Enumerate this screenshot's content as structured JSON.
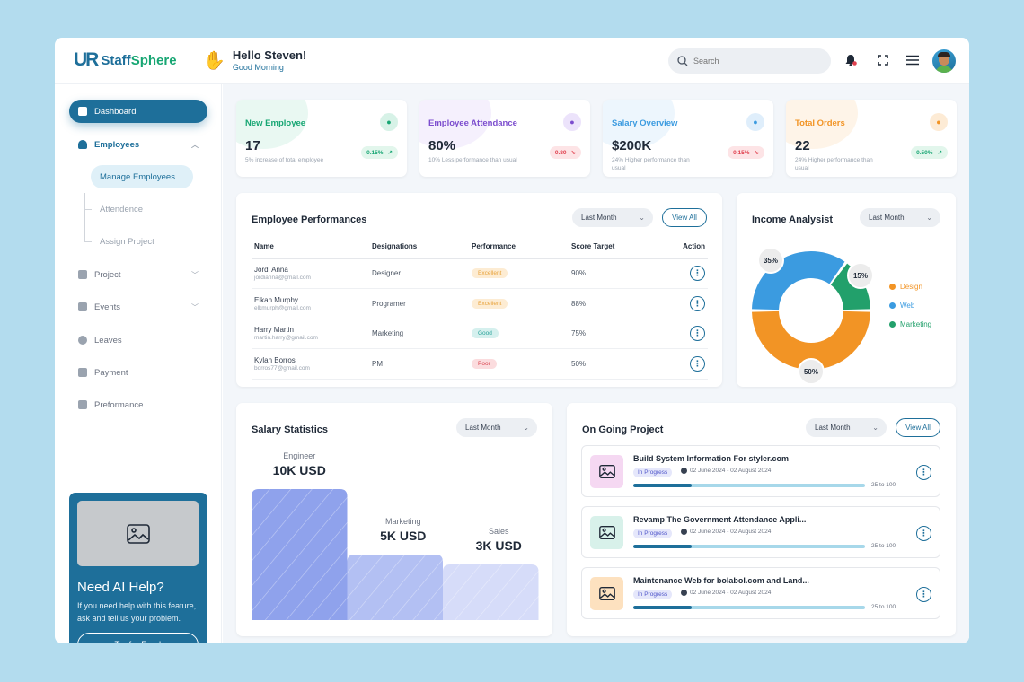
{
  "app": {
    "logo_mark": "UR",
    "logo_name_a": "Staff",
    "logo_name_b": "Sphere",
    "greeting_title": "Hello Steven!",
    "greeting_sub": "Good Morning",
    "search_placeholder": "Search",
    "icons": [
      "bell-icon",
      "fullscreen-icon",
      "menu-icon"
    ]
  },
  "sidebar": {
    "dashboard": "Dashboard",
    "employees": "Employees",
    "sub_items": [
      "Manage Employees",
      "Attendence",
      "Assign Project"
    ],
    "project": "Project",
    "events": "Events",
    "leaves": "Leaves",
    "payment": "Payment",
    "performance": "Preformance",
    "ai_card": {
      "title": "Need AI Help?",
      "text": "If you need help with this feature, ask and tell us your problem.",
      "button": "Try for Free!"
    }
  },
  "stats": [
    {
      "title": "New Employee",
      "value": "17",
      "note": "5% increase of total employee",
      "badge": "0.15%",
      "badge_arrow": "↗",
      "color": "#17a673",
      "tint": "#d7f2e7",
      "badge_bg": "#e2f6ec",
      "badge_color": "#17a673",
      "icon": "users-icon"
    },
    {
      "title": "Employee Attendance",
      "value": "80%",
      "note": "10% Less performance than usual",
      "badge": "0.80",
      "badge_arrow": "↘",
      "color": "#7c4dce",
      "tint": "#ece3fb",
      "badge_bg": "#fde4e6",
      "badge_color": "#e0414f",
      "icon": "megaphone-icon"
    },
    {
      "title": "Salary Overview",
      "value": "$200K",
      "note": "24% Higher performance than usual",
      "badge": "0.15%",
      "badge_arrow": "↘",
      "color": "#3b9be0",
      "tint": "#dfeefb",
      "badge_bg": "#fde4e6",
      "badge_color": "#e0414f",
      "icon": "cash-icon"
    },
    {
      "title": "Total Orders",
      "value": "22",
      "note": "24% Higher performance than usual",
      "badge": "0.50%",
      "badge_arrow": "↗",
      "color": "#f29425",
      "tint": "#fdebd5",
      "badge_bg": "#e2f6ec",
      "badge_color": "#17a673",
      "icon": "box-icon"
    }
  ],
  "performances": {
    "title": "Employee Performances",
    "filter": "Last Month",
    "view_all": "View All",
    "columns": [
      "Name",
      "Designations",
      "Performance",
      "Score Target",
      "Action"
    ],
    "rows": [
      {
        "name": "Jordi Anna",
        "email": "jordianna@gmail.com",
        "designation": "Designer",
        "performance": "Excellent",
        "perf_bg": "#fdecd3",
        "perf_color": "#e8a33c",
        "score": "90%"
      },
      {
        "name": "Elkan Murphy",
        "email": "elkmurph@gmail.com",
        "designation": "Programer",
        "performance": "Excellent",
        "perf_bg": "#fdecd3",
        "perf_color": "#e8a33c",
        "score": "88%"
      },
      {
        "name": "Harry Martin",
        "email": "martin.harry@gmail.com",
        "designation": "Marketing",
        "performance": "Good",
        "perf_bg": "#d5f0ee",
        "perf_color": "#2aa39a",
        "score": "75%"
      },
      {
        "name": "Kylan Borros",
        "email": "borros77@gmail.com",
        "designation": "PM",
        "performance": "Poor",
        "perf_bg": "#fbdcde",
        "perf_color": "#d9434f",
        "score": "50%"
      }
    ]
  },
  "income": {
    "title": "Income Analysist",
    "filter": "Last Month",
    "legend": [
      {
        "name": "Design",
        "color": "#f29425"
      },
      {
        "name": "Web",
        "color": "#3b9be0"
      },
      {
        "name": "Marketing",
        "color": "#22a06b"
      }
    ],
    "chart_data": {
      "type": "pie",
      "categories": [
        "Design",
        "Web",
        "Marketing"
      ],
      "values": [
        50,
        35,
        15
      ],
      "labels": [
        "50%",
        "35%",
        "15%"
      ],
      "colors": [
        "#f29425",
        "#3b9be0",
        "#22a06b"
      ]
    }
  },
  "salary": {
    "title": "Salary Statistics",
    "filter": "Last Month",
    "chart_data": {
      "type": "bar",
      "categories": [
        "Engineer",
        "Marketing",
        "Sales"
      ],
      "values": [
        10,
        5,
        3
      ],
      "labels": [
        "10K USD",
        "5K USD",
        "3K USD"
      ],
      "unit": "K USD",
      "colors": [
        "#8fa2ec",
        "#b3c0f3",
        "#d6dcf9"
      ]
    }
  },
  "projects": {
    "title": "On Going Project",
    "filter": "Last Month",
    "view_all": "View All",
    "items": [
      {
        "title": "Build System Information For styler.com",
        "status": "In Progress",
        "date": "02 June 2024 - 02 August 2024",
        "range": "25 to 100",
        "progress": 0.25,
        "thumb_bg": "#f5d8f2"
      },
      {
        "title": "Revamp The Government Attendance Appli...",
        "status": "In Progress",
        "date": "02 June 2024 - 02 August 2024",
        "range": "25 to 100",
        "progress": 0.25,
        "thumb_bg": "#d8f1ea"
      },
      {
        "title": "Maintenance Web for bolabol.com and Land...",
        "status": "In Progress",
        "date": "02 June 2024 - 02 August 2024",
        "range": "25 to 100",
        "progress": 0.25,
        "thumb_bg": "#fde1bf"
      }
    ]
  }
}
